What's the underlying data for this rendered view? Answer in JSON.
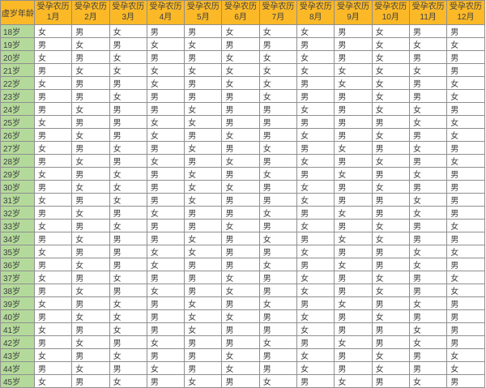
{
  "colors": {
    "header_bg": "#fbb928",
    "header_text": "#4d4d4d",
    "age_bg": "#b4da9b",
    "text": "#3f3f3f",
    "border": "#8f8f8f"
  },
  "table": {
    "corner_header": "虚岁年龄",
    "month_prefix": "受孕农历",
    "months": [
      "1月",
      "2月",
      "3月",
      "4月",
      "5月",
      "6月",
      "7月",
      "8月",
      "9月",
      "10月",
      "11月",
      "12月"
    ],
    "rows": [
      {
        "age": "18岁",
        "values": [
          "女",
          "男",
          "女",
          "男",
          "男",
          "女",
          "女",
          "女",
          "男",
          "女",
          "男",
          "男"
        ]
      },
      {
        "age": "19岁",
        "values": [
          "男",
          "女",
          "男",
          "女",
          "女",
          "男",
          "男",
          "男",
          "男",
          "女",
          "女",
          "女"
        ]
      },
      {
        "age": "20岁",
        "values": [
          "女",
          "男",
          "女",
          "男",
          "男",
          "女",
          "女",
          "女",
          "男",
          "女",
          "男",
          "男"
        ]
      },
      {
        "age": "21岁",
        "values": [
          "男",
          "女",
          "女",
          "女",
          "女",
          "女",
          "女",
          "女",
          "女",
          "女",
          "女",
          "男"
        ]
      },
      {
        "age": "22岁",
        "values": [
          "女",
          "男",
          "男",
          "女",
          "男",
          "女",
          "女",
          "男",
          "女",
          "女",
          "男",
          "女"
        ]
      },
      {
        "age": "23岁",
        "values": [
          "男",
          "男",
          "女",
          "男",
          "男",
          "男",
          "女",
          "男",
          "男",
          "女",
          "男",
          "女"
        ]
      },
      {
        "age": "24岁",
        "values": [
          "男",
          "女",
          "男",
          "男",
          "女",
          "男",
          "男",
          "女",
          "男",
          "女",
          "女",
          "男"
        ]
      },
      {
        "age": "25岁",
        "values": [
          "女",
          "男",
          "男",
          "女",
          "女",
          "男",
          "男",
          "男",
          "男",
          "男",
          "女",
          "女"
        ]
      },
      {
        "age": "26岁",
        "values": [
          "男",
          "女",
          "男",
          "女",
          "男",
          "女",
          "男",
          "女",
          "男",
          "女",
          "男",
          "女"
        ]
      },
      {
        "age": "27岁",
        "values": [
          "女",
          "男",
          "女",
          "男",
          "女",
          "男",
          "女",
          "男",
          "女",
          "男",
          "女",
          "男"
        ]
      },
      {
        "age": "28岁",
        "values": [
          "男",
          "女",
          "男",
          "女",
          "男",
          "女",
          "男",
          "女",
          "男",
          "女",
          "男",
          "女"
        ]
      },
      {
        "age": "29岁",
        "values": [
          "女",
          "男",
          "女",
          "男",
          "女",
          "男",
          "女",
          "男",
          "女",
          "男",
          "女",
          "男"
        ]
      },
      {
        "age": "30岁",
        "values": [
          "男",
          "女",
          "女",
          "男",
          "女",
          "女",
          "男",
          "女",
          "男",
          "女",
          "男",
          "男"
        ]
      },
      {
        "age": "31岁",
        "values": [
          "女",
          "男",
          "女",
          "男",
          "女",
          "男",
          "男",
          "女",
          "男",
          "男",
          "女",
          "男"
        ]
      },
      {
        "age": "32岁",
        "values": [
          "男",
          "女",
          "男",
          "女",
          "男",
          "男",
          "女",
          "男",
          "女",
          "男",
          "女",
          "男"
        ]
      },
      {
        "age": "33岁",
        "values": [
          "女",
          "男",
          "女",
          "男",
          "男",
          "女",
          "男",
          "女",
          "男",
          "女",
          "男",
          "女"
        ]
      },
      {
        "age": "34岁",
        "values": [
          "男",
          "女",
          "男",
          "男",
          "女",
          "男",
          "女",
          "男",
          "女",
          "女",
          "男",
          "男"
        ]
      },
      {
        "age": "35岁",
        "values": [
          "女",
          "男",
          "男",
          "女",
          "女",
          "男",
          "男",
          "女",
          "男",
          "男",
          "女",
          "女"
        ]
      },
      {
        "age": "36岁",
        "values": [
          "男",
          "女",
          "男",
          "女",
          "男",
          "男",
          "女",
          "男",
          "女",
          "男",
          "女",
          "男"
        ]
      },
      {
        "age": "37岁",
        "values": [
          "女",
          "男",
          "女",
          "男",
          "男",
          "女",
          "男",
          "女",
          "男",
          "女",
          "男",
          "女"
        ]
      },
      {
        "age": "38岁",
        "values": [
          "男",
          "女",
          "男",
          "女",
          "男",
          "女",
          "男",
          "女",
          "男",
          "女",
          "男",
          "女"
        ]
      },
      {
        "age": "39岁",
        "values": [
          "女",
          "男",
          "女",
          "男",
          "女",
          "男",
          "女",
          "男",
          "女",
          "男",
          "女",
          "男"
        ]
      },
      {
        "age": "40岁",
        "values": [
          "男",
          "女",
          "女",
          "男",
          "女",
          "女",
          "男",
          "女",
          "男",
          "女",
          "男",
          "男"
        ]
      },
      {
        "age": "41岁",
        "values": [
          "女",
          "男",
          "女",
          "男",
          "女",
          "男",
          "男",
          "女",
          "男",
          "男",
          "女",
          "男"
        ]
      },
      {
        "age": "42岁",
        "values": [
          "男",
          "女",
          "男",
          "女",
          "男",
          "男",
          "女",
          "男",
          "女",
          "男",
          "女",
          "男"
        ]
      },
      {
        "age": "43岁",
        "values": [
          "女",
          "男",
          "女",
          "男",
          "男",
          "女",
          "男",
          "女",
          "男",
          "女",
          "男",
          "女"
        ]
      },
      {
        "age": "44岁",
        "values": [
          "男",
          "女",
          "男",
          "女",
          "男",
          "女",
          "男",
          "女",
          "男",
          "女",
          "男",
          "女"
        ]
      },
      {
        "age": "45岁",
        "values": [
          "女",
          "男",
          "女",
          "男",
          "女",
          "男",
          "女",
          "男",
          "女",
          "男",
          "女",
          "男"
        ]
      }
    ]
  }
}
